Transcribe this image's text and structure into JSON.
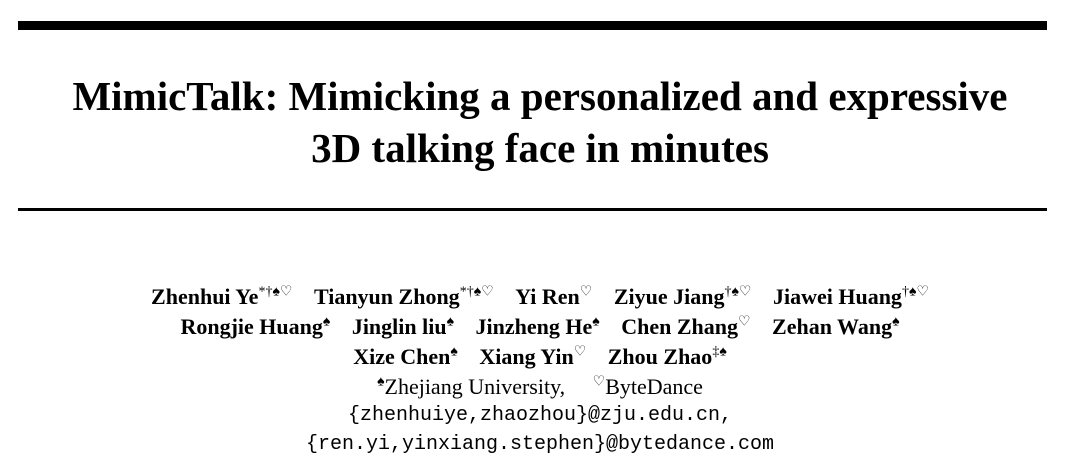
{
  "title_lines": [
    "MimicTalk: Mimicking a personalized and expressive",
    "3D talking face in minutes"
  ],
  "authors": [
    {
      "name": "Zhenhui Ye",
      "marks": "*†♠♡"
    },
    {
      "name": "Tianyun Zhong",
      "marks": "*†♠♡"
    },
    {
      "name": "Yi Ren",
      "marks": "♡"
    },
    {
      "name": "Ziyue Jiang",
      "marks": "†♠♡"
    },
    {
      "name": "Jiawei Huang",
      "marks": "†♠♡"
    },
    {
      "name": "Rongjie Huang",
      "marks": "♠"
    },
    {
      "name": "Jinglin liu",
      "marks": "♠"
    },
    {
      "name": "Jinzheng He",
      "marks": "♠"
    },
    {
      "name": "Chen Zhang",
      "marks": "♡"
    },
    {
      "name": "Zehan Wang",
      "marks": "♠"
    },
    {
      "name": "Xize Chen",
      "marks": "♠"
    },
    {
      "name": "Xiang Yin",
      "marks": "♡"
    },
    {
      "name": "Zhou Zhao",
      "marks": "‡♠"
    }
  ],
  "affiliations": [
    {
      "mark": "♠",
      "name": "Zhejiang University,"
    },
    {
      "mark": "♡",
      "name": "ByteDance"
    }
  ],
  "emails": [
    "{zhenhuiye,zhaozhou}@zju.edu.cn,",
    "{ren.yi,yinxiang.stephen}@bytedance.com"
  ]
}
